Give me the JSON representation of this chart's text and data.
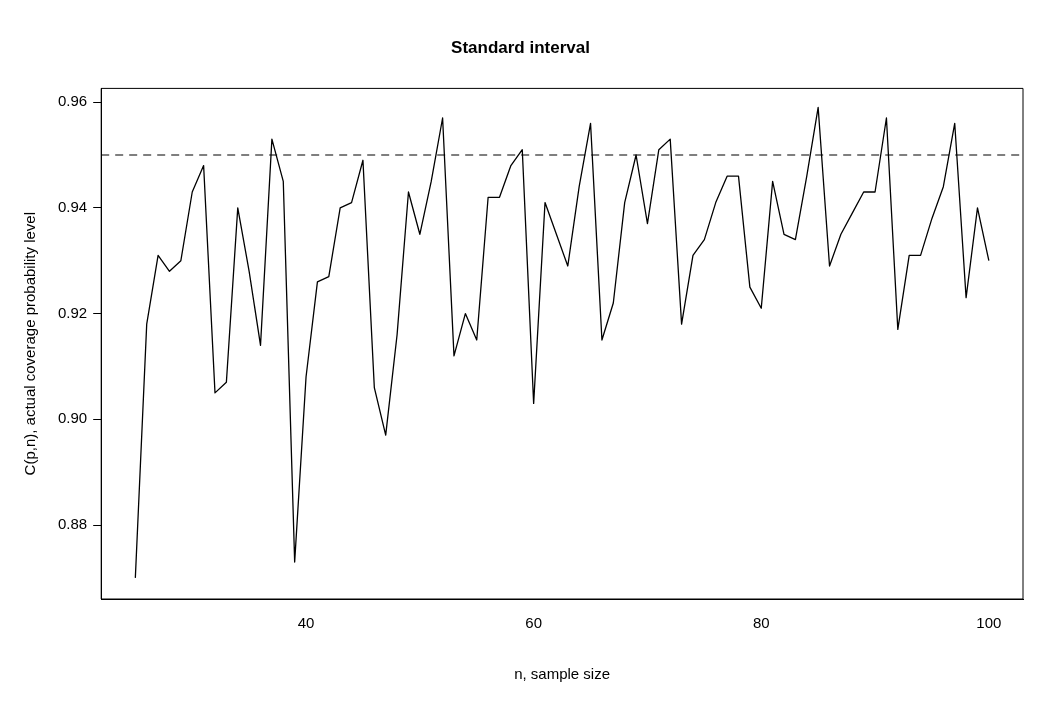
{
  "chart_data": {
    "type": "line",
    "title": "Standard interval",
    "xlabel": "n, sample size",
    "ylabel": "C(p,n), actual coverage probability level",
    "x": [
      25,
      26,
      27,
      28,
      29,
      30,
      31,
      32,
      33,
      34,
      35,
      36,
      37,
      38,
      39,
      40,
      41,
      42,
      43,
      44,
      45,
      46,
      47,
      48,
      49,
      50,
      51,
      52,
      53,
      54,
      55,
      56,
      57,
      58,
      59,
      60,
      61,
      62,
      63,
      64,
      65,
      66,
      67,
      68,
      69,
      70,
      71,
      72,
      73,
      74,
      75,
      76,
      77,
      78,
      79,
      80,
      81,
      82,
      83,
      84,
      85,
      86,
      87,
      88,
      89,
      90,
      91,
      92,
      93,
      94,
      95,
      96,
      97,
      98,
      99,
      100
    ],
    "series": [
      {
        "color": "#000000",
        "values": [
          0.87,
          0.918,
          0.931,
          0.928,
          0.93,
          0.943,
          0.948,
          0.905,
          0.907,
          0.94,
          0.928,
          0.914,
          0.953,
          0.945,
          0.873,
          0.908,
          0.926,
          0.927,
          0.94,
          0.941,
          0.949,
          0.906,
          0.897,
          0.916,
          0.943,
          0.935,
          0.945,
          0.957,
          0.912,
          0.92,
          0.915,
          0.942,
          0.942,
          0.948,
          0.951,
          0.903,
          0.941,
          0.935,
          0.929,
          0.944,
          0.956,
          0.915,
          0.922,
          0.941,
          0.95,
          0.937,
          0.951,
          0.953,
          0.918,
          0.931,
          0.934,
          0.941,
          0.946,
          0.946,
          0.925,
          0.921,
          0.945,
          0.935,
          0.934,
          0.946,
          0.959,
          0.929,
          0.935,
          0.939,
          0.943,
          0.943,
          0.957,
          0.917,
          0.931,
          0.931,
          0.938,
          0.944,
          0.956,
          0.923,
          0.94,
          0.93
        ]
      }
    ],
    "xlim": [
      22,
      103
    ],
    "xticks": [
      40,
      60,
      80,
      100
    ],
    "ylim": [
      0.866,
      0.9626
    ],
    "yticks": [
      {
        "value": 0.88,
        "label": "0.88"
      },
      {
        "value": 0.9,
        "label": "0.90"
      },
      {
        "value": 0.92,
        "label": "0.92"
      },
      {
        "value": 0.94,
        "label": "0.94"
      },
      {
        "value": 0.96,
        "label": "0.96"
      }
    ],
    "ref_lines": [
      {
        "axis": "y",
        "value": 0.95,
        "color": "#000000",
        "line_style": "dashed"
      }
    ],
    "grid": false,
    "legend": false,
    "marker": "none",
    "line_style": "solid"
  }
}
